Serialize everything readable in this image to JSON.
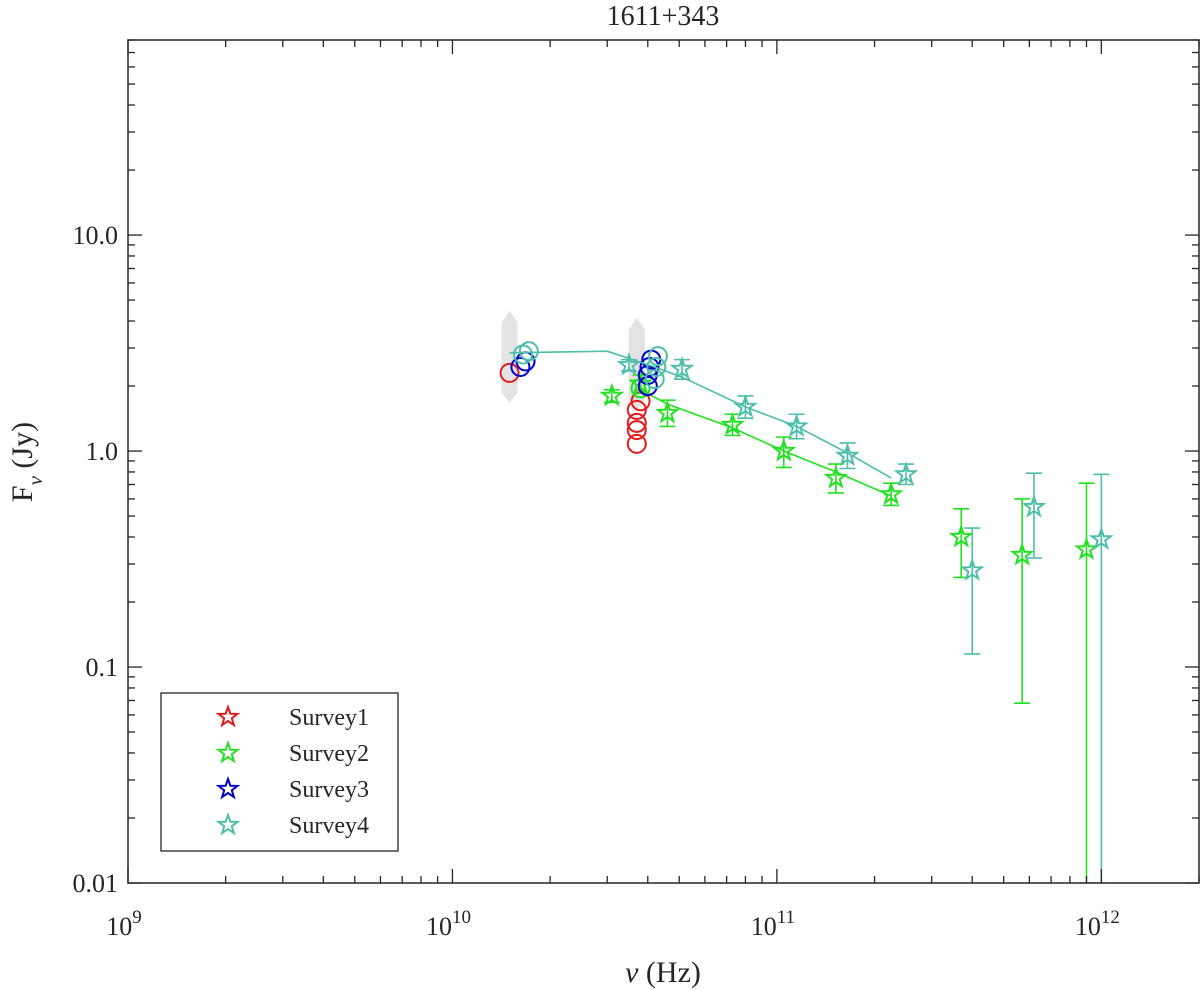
{
  "chart_data": {
    "type": "scatter",
    "title": "1611+343",
    "xlabel": "ν (Hz)",
    "ylabel": "Fν (Jy)",
    "xscale": "log",
    "yscale": "log",
    "xlim": [
      1000000000.0,
      2000000000000.0
    ],
    "ylim": [
      0.01,
      80
    ],
    "x_ticks": [
      {
        "value": 1000000000.0,
        "base": "10",
        "exp": "9"
      },
      {
        "value": 10000000000.0,
        "base": "10",
        "exp": "10"
      },
      {
        "value": 100000000000.0,
        "base": "10",
        "exp": "11"
      },
      {
        "value": 1000000000000.0,
        "base": "10",
        "exp": "12"
      }
    ],
    "y_ticks": [
      {
        "value": 0.01,
        "label": "0.01"
      },
      {
        "value": 0.1,
        "label": "0.1"
      },
      {
        "value": 1,
        "label": "1.0"
      },
      {
        "value": 10,
        "label": "10.0"
      }
    ],
    "grid": false,
    "legend_position": "bottom-left",
    "series": [
      {
        "name": "Survey1",
        "color": "#e41a1c",
        "circles": [
          [
            15000000000.0,
            2.3
          ],
          [
            37000000000.0,
            1.08
          ],
          [
            37000000000.0,
            1.25
          ],
          [
            37000000000.0,
            1.35
          ],
          [
            37000000000.0,
            1.55
          ],
          [
            38000000000.0,
            1.7
          ]
        ],
        "stars": [],
        "line": []
      },
      {
        "name": "Survey2",
        "color": "#22e122",
        "circles": [
          [
            38000000000.0,
            1.95
          ]
        ],
        "stars": [
          {
            "x": 31000000000.0,
            "y": 1.8,
            "lo": 1.68,
            "hi": 1.92
          },
          {
            "x": 38000000000.0,
            "y": 2.05,
            "lo": 1.85,
            "hi": 2.25
          },
          {
            "x": 46000000000.0,
            "y": 1.5,
            "lo": 1.3,
            "hi": 1.72
          },
          {
            "x": 73000000000.0,
            "y": 1.32,
            "lo": 1.18,
            "hi": 1.48
          },
          {
            "x": 105000000000.0,
            "y": 1.0,
            "lo": 0.84,
            "hi": 1.16
          },
          {
            "x": 152000000000.0,
            "y": 0.75,
            "lo": 0.64,
            "hi": 0.87
          },
          {
            "x": 225000000000.0,
            "y": 0.63,
            "lo": 0.56,
            "hi": 0.71
          },
          {
            "x": 370000000000.0,
            "y": 0.4,
            "lo": 0.26,
            "hi": 0.54
          },
          {
            "x": 570000000000.0,
            "y": 0.33,
            "lo": 0.068,
            "hi": 0.6
          },
          {
            "x": 900000000000.0,
            "y": 0.35,
            "lo": 0.01,
            "hi": 0.71
          }
        ],
        "line": [
          [
            38000000000.0,
            1.92
          ],
          [
            46000000000.0,
            1.65
          ],
          [
            73000000000.0,
            1.28
          ],
          [
            105000000000.0,
            1.0
          ],
          [
            152000000000.0,
            0.8
          ],
          [
            225000000000.0,
            0.62
          ]
        ]
      },
      {
        "name": "Survey3",
        "color": "#0000cc",
        "circles": [
          [
            16200000000.0,
            2.45
          ],
          [
            16800000000.0,
            2.6
          ],
          [
            40000000000.0,
            2.0
          ],
          [
            40000000000.0,
            2.25
          ],
          [
            40500000000.0,
            2.45
          ],
          [
            41000000000.0,
            2.65
          ]
        ],
        "stars": [],
        "line": []
      },
      {
        "name": "Survey4",
        "color": "#4dbfa8",
        "circles": [
          [
            16500000000.0,
            2.8
          ],
          [
            17200000000.0,
            2.9
          ],
          [
            42000000000.0,
            2.15
          ],
          [
            42500000000.0,
            2.45
          ],
          [
            43000000000.0,
            2.75
          ]
        ],
        "stars": [
          {
            "x": 35000000000.0,
            "y": 2.5,
            "lo": 2.35,
            "hi": 2.65
          },
          {
            "x": 51000000000.0,
            "y": 2.4,
            "lo": 2.15,
            "hi": 2.65
          },
          {
            "x": 80000000000.0,
            "y": 1.6,
            "lo": 1.42,
            "hi": 1.8
          },
          {
            "x": 115000000000.0,
            "y": 1.3,
            "lo": 1.14,
            "hi": 1.48
          },
          {
            "x": 165000000000.0,
            "y": 0.95,
            "lo": 0.83,
            "hi": 1.09
          },
          {
            "x": 250000000000.0,
            "y": 0.78,
            "lo": 0.7,
            "hi": 0.87
          },
          {
            "x": 400000000000.0,
            "y": 0.28,
            "lo": 0.115,
            "hi": 0.44
          },
          {
            "x": 620000000000.0,
            "y": 0.55,
            "lo": 0.32,
            "hi": 0.79
          },
          {
            "x": 1000000000000.0,
            "y": 0.39,
            "lo": 0.01,
            "hi": 0.78
          }
        ],
        "line": [
          [
            15000000000.0,
            2.85
          ],
          [
            30000000000.0,
            2.9
          ],
          [
            42000000000.0,
            2.45
          ],
          [
            51000000000.0,
            2.2
          ],
          [
            80000000000.0,
            1.6
          ],
          [
            115000000000.0,
            1.3
          ],
          [
            165000000000.0,
            0.98
          ],
          [
            225000000000.0,
            0.75
          ]
        ]
      }
    ],
    "shaded_markers": [
      [
        15000000000.0,
        2.85
      ],
      [
        37000000000.0,
        2.65
      ]
    ]
  }
}
